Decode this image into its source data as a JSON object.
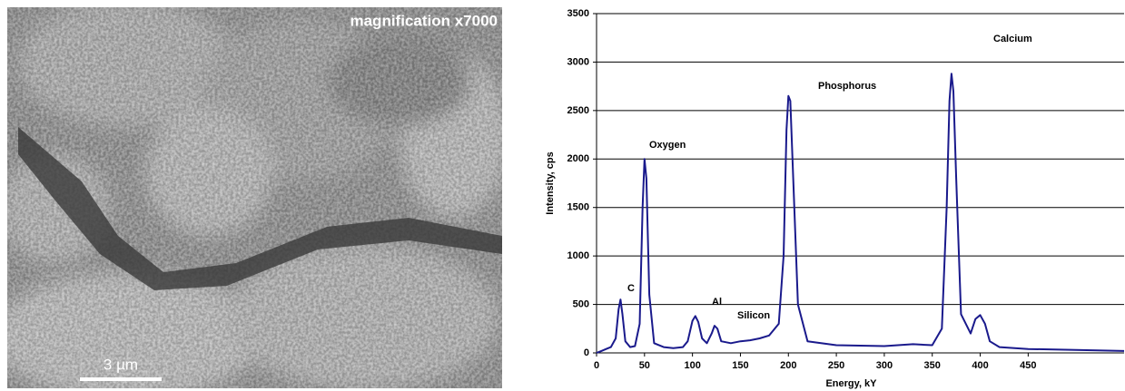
{
  "image": {
    "caption": "magnification x7000",
    "scale_bar": "3 µm"
  },
  "chart_data": {
    "type": "line",
    "x_label": "Energy, kY",
    "y_label": "Intensity, cps",
    "annotations": [
      "C",
      "Oxygen",
      "Al",
      "Silicon",
      "Phosphorus",
      "Calcium"
    ],
    "x": [
      0,
      5,
      10,
      15,
      20,
      23,
      25,
      27,
      30,
      35,
      40,
      45,
      48,
      50,
      52,
      55,
      60,
      70,
      80,
      90,
      95,
      100,
      103,
      106,
      110,
      115,
      120,
      123,
      126,
      130,
      140,
      150,
      160,
      170,
      180,
      190,
      195,
      198,
      200,
      202,
      205,
      210,
      220,
      250,
      300,
      330,
      350,
      360,
      365,
      368,
      370,
      372,
      375,
      380,
      390,
      395,
      400,
      405,
      410,
      420,
      450,
      500,
      550
    ],
    "values": [
      0,
      20,
      40,
      60,
      150,
      450,
      550,
      400,
      120,
      60,
      70,
      300,
      1500,
      2000,
      1800,
      600,
      100,
      60,
      50,
      60,
      120,
      330,
      380,
      320,
      150,
      100,
      200,
      280,
      250,
      120,
      100,
      120,
      130,
      150,
      180,
      300,
      1000,
      2300,
      2650,
      2600,
      1800,
      500,
      120,
      80,
      70,
      90,
      80,
      250,
      1500,
      2600,
      2880,
      2700,
      1800,
      400,
      200,
      350,
      390,
      300,
      120,
      60,
      40,
      30,
      20
    ],
    "color": "#1a1a8c",
    "xlim": [
      0,
      550
    ],
    "xticks": [
      0,
      50,
      100,
      150,
      200,
      250,
      300,
      350,
      400,
      450
    ],
    "ylim": [
      0,
      3500
    ],
    "yticks": [
      0,
      500,
      1000,
      1500,
      2000,
      2500,
      3000,
      3500
    ],
    "grid": true
  }
}
